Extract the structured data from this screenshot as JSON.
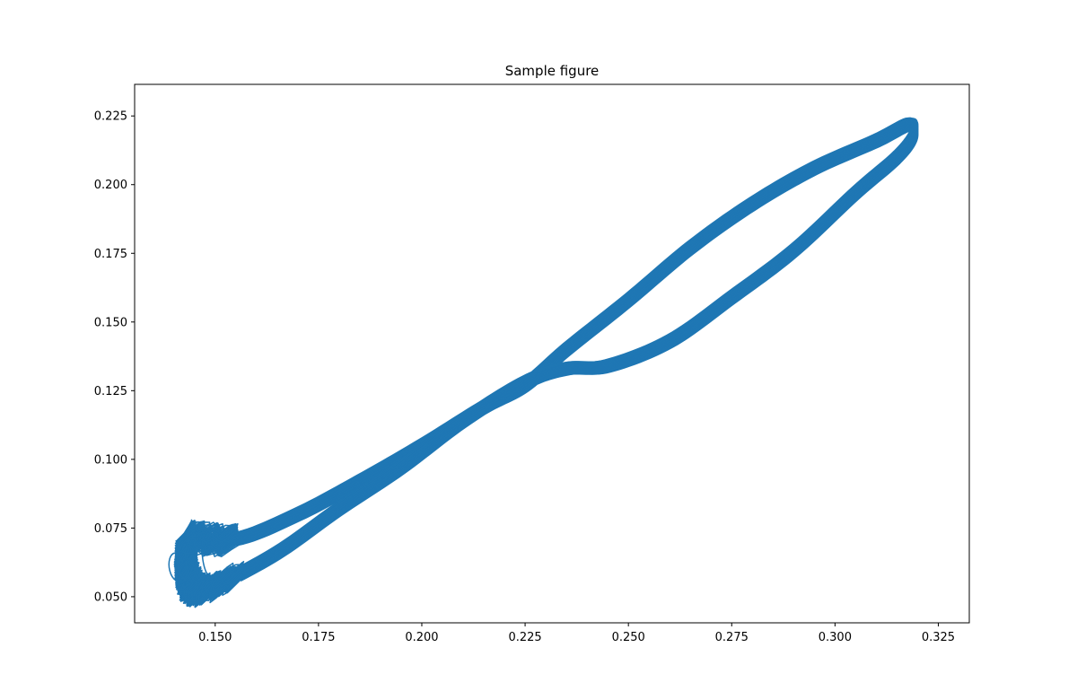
{
  "chart_data": {
    "type": "line",
    "title": "Sample figure",
    "xlabel": "",
    "ylabel": "",
    "xlim": [
      0.1305,
      0.3325
    ],
    "ylim": [
      0.0405,
      0.2365
    ],
    "x_ticks": [
      "0.150",
      "0.175",
      "0.200",
      "0.225",
      "0.250",
      "0.275",
      "0.300",
      "0.325"
    ],
    "y_ticks": [
      "0.050",
      "0.075",
      "0.100",
      "0.125",
      "0.150",
      "0.175",
      "0.200",
      "0.225"
    ],
    "grid": false,
    "legend": "none",
    "series": [
      {
        "color": "#1f77b4",
        "description_points": {
          "upper_branch": [
            [
              0.143,
              0.072
            ],
            [
              0.155,
              0.071
            ],
            [
              0.17,
              0.08
            ],
            [
              0.185,
              0.092
            ],
            [
              0.2,
              0.105
            ],
            [
              0.215,
              0.119
            ],
            [
              0.225,
              0.127
            ],
            [
              0.235,
              0.14
            ],
            [
              0.25,
              0.158
            ],
            [
              0.265,
              0.177
            ],
            [
              0.28,
              0.193
            ],
            [
              0.295,
              0.206
            ],
            [
              0.31,
              0.216
            ],
            [
              0.318,
              0.222
            ]
          ],
          "lower_branch": [
            [
              0.319,
              0.218
            ],
            [
              0.315,
              0.21
            ],
            [
              0.305,
              0.197
            ],
            [
              0.29,
              0.176
            ],
            [
              0.275,
              0.159
            ],
            [
              0.26,
              0.143
            ],
            [
              0.245,
              0.134
            ],
            [
              0.235,
              0.133
            ],
            [
              0.225,
              0.128
            ],
            [
              0.21,
              0.114
            ],
            [
              0.195,
              0.097
            ],
            [
              0.18,
              0.082
            ],
            [
              0.165,
              0.066
            ],
            [
              0.15,
              0.054
            ],
            [
              0.145,
              0.053
            ],
            [
              0.143,
              0.06
            ],
            [
              0.143,
              0.072
            ]
          ]
        }
      }
    ]
  }
}
